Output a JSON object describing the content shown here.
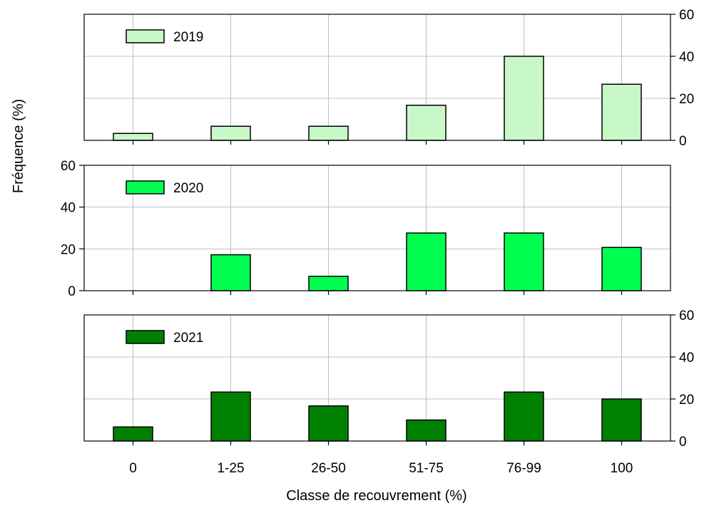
{
  "chart_data": {
    "type": "bar",
    "xlabel": "Classe de recouvrement (%)",
    "ylabel": "Fréquence (%)",
    "categories": [
      "0",
      "1-25",
      "26-50",
      "51-75",
      "76-99",
      "100"
    ],
    "ylim": [
      0,
      60
    ],
    "yticks": [
      0,
      20,
      40,
      60
    ],
    "grid": true,
    "panels": [
      {
        "name": "2019",
        "color": "#c8f8c8",
        "y_axis_side": "right",
        "values": [
          3.3,
          6.7,
          6.7,
          16.7,
          40.0,
          26.7
        ]
      },
      {
        "name": "2020",
        "color": "#00ff50",
        "y_axis_side": "left",
        "values": [
          0,
          17.2,
          6.9,
          27.6,
          27.6,
          20.7
        ]
      },
      {
        "name": "2021",
        "color": "#008000",
        "y_axis_side": "right",
        "values": [
          6.7,
          23.3,
          16.7,
          10.0,
          23.3,
          20.0
        ]
      }
    ]
  }
}
